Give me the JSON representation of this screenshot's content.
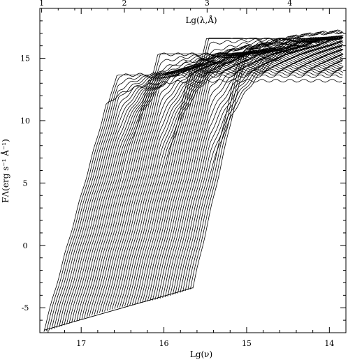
{
  "chart_data": {
    "type": "line",
    "title": "",
    "xlabel": "Lg(ν)",
    "ylabel": "FΛ(erg s⁻¹ Å⁻¹)",
    "top_xlabel": "Lg(λ,Å)",
    "x_reversed": true,
    "xlim": [
      17.5,
      13.8
    ],
    "ylim": [
      -7,
      19
    ],
    "top_axis_lambda_range": [
      0.978,
      4.678
    ],
    "x_ticks": [
      17,
      16,
      15,
      14
    ],
    "y_ticks": [
      -5,
      0,
      5,
      10,
      15
    ],
    "top_ticks": [
      1,
      2,
      3,
      4
    ],
    "grid": false,
    "legend": "none",
    "series_count": 60,
    "curve_family": {
      "approx_x_start_range": [
        17.45,
        15.65
      ],
      "approx_y_start_range": [
        -6.8,
        -3.4
      ],
      "approx_plateau_y_range": [
        13.2,
        17.4
      ],
      "knee_positions_lgnu": [
        17.25,
        16.55,
        16.05,
        15.45
      ]
    }
  }
}
